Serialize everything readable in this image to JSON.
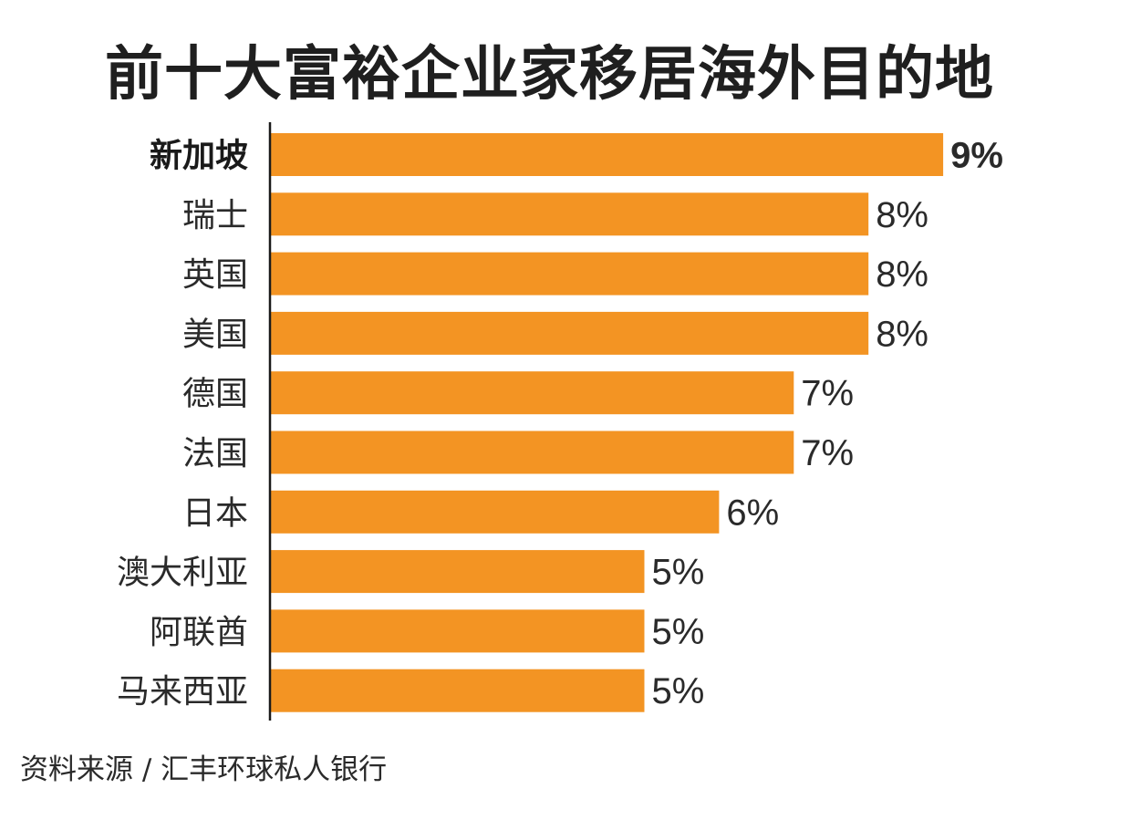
{
  "chart_data": {
    "type": "bar",
    "orientation": "horizontal",
    "title": "前十大富裕企业家移居海外目的地",
    "categories": [
      "新加坡",
      "瑞士",
      "英国",
      "美国",
      "德国",
      "法国",
      "日本",
      "澳大利亚",
      "阿联酋",
      "马来西亚"
    ],
    "values": [
      9,
      8,
      8,
      8,
      7,
      7,
      6,
      5,
      5,
      5
    ],
    "value_labels": [
      "9%",
      "8%",
      "8%",
      "8%",
      "7%",
      "7%",
      "6%",
      "5%",
      "5%",
      "5%"
    ],
    "highlight": "新加坡",
    "bar_color": "#F39423",
    "grid": false,
    "legend": "none"
  },
  "source": "资料来源 / 汇丰环球私人银行"
}
